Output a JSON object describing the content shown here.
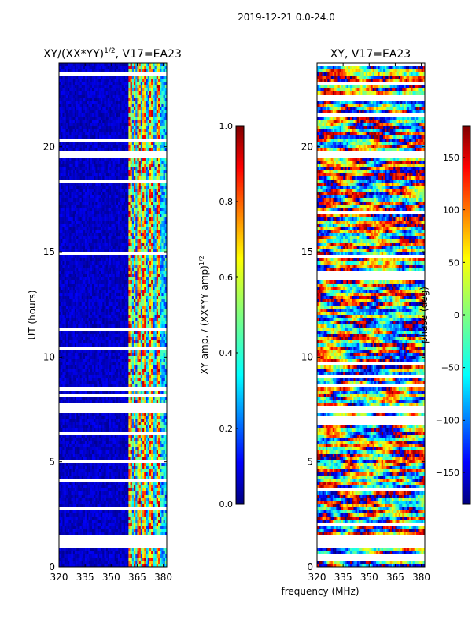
{
  "suptitle": "2019-12-21 0.0-24.0",
  "shared": {
    "xlabel": "frequency (MHz)",
    "xrange": [
      320,
      382
    ],
    "xticks": [
      320,
      335,
      350,
      365,
      380
    ],
    "ylabel": "UT (hours)",
    "yrange": [
      0,
      24
    ],
    "yticks": [
      0,
      5,
      10,
      15,
      20
    ]
  },
  "chart_data": [
    {
      "type": "heatmap",
      "title_main": "XY/(XX*YY)",
      "title_sup": "1/2",
      "title_rest": ", V17=EA23",
      "colormap": "jet",
      "colorbar": {
        "label_main": "XY amp. / (XX*YY amp)",
        "label_sup": "1/2",
        "range": [
          0.0,
          1.0
        ],
        "ticks": [
          "0.0",
          "0.2",
          "0.4",
          "0.6",
          "0.8",
          "1.0"
        ]
      },
      "flagged_ut_hours": [
        1.0,
        1.1,
        1.2,
        1.3,
        1.4,
        7.5,
        7.6,
        7.7,
        19.6,
        19.7
      ],
      "bright_channels_mhz": [
        360.5,
        361.5,
        363.5,
        366,
        369,
        373,
        377
      ]
    },
    {
      "type": "heatmap",
      "title": "XY, V17=EA23",
      "colormap": "jet",
      "colorbar": {
        "label": "phase (deg)",
        "range": [
          -180,
          180
        ],
        "ticks": [
          "150",
          "100",
          "50",
          "0",
          "−50",
          "−100",
          "−150"
        ]
      },
      "flagged_ut_hours": [
        1.0,
        1.1,
        1.2,
        1.3,
        1.4,
        7.5,
        7.6,
        19.6,
        19.7
      ]
    }
  ],
  "colors": {
    "jet_stops": [
      "#00007f",
      "#0000ff",
      "#007fff",
      "#00ffff",
      "#7fff7f",
      "#ffff00",
      "#ff7f00",
      "#ff0000",
      "#7f0000"
    ]
  }
}
